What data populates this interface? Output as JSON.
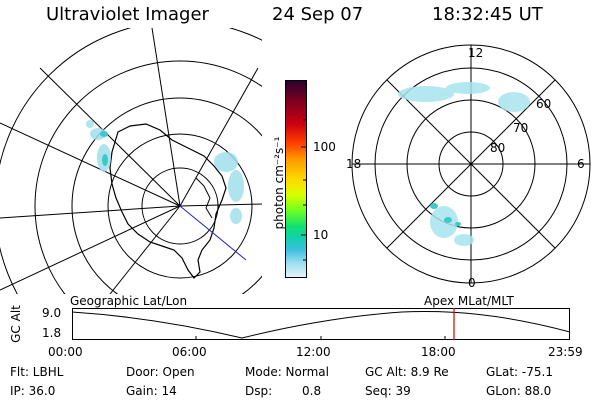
{
  "header": {
    "instrument": "Ultraviolet Imager",
    "date": "24 Sep 07",
    "time": "18:32:45 UT"
  },
  "geo_map": {
    "label": "Geographic Lat/Lon"
  },
  "polar_map": {
    "label": "Apex  MLat/MLT",
    "mlt_labels": [
      "12",
      "18",
      "6",
      "0"
    ],
    "lat_labels": [
      "60",
      "70",
      "80"
    ]
  },
  "colorbar": {
    "unit_label": "photon cm⁻²s⁻¹",
    "tick_labels": [
      "100",
      "10"
    ],
    "colors": [
      "#2a0030",
      "#7a0020",
      "#cc0010",
      "#ff4000",
      "#ff9a00",
      "#ffd800",
      "#d8ff00",
      "#70ff20",
      "#10e070",
      "#10d0b0",
      "#40c0e0",
      "#a0e0f0",
      "#e6f4f8"
    ]
  },
  "timeline": {
    "ylabel": "GC Alt",
    "y_top": "9.0",
    "y_bottom": "1.8",
    "x_ticks": [
      "00:00",
      "06:00",
      "12:00",
      "18:00",
      "23:59"
    ],
    "marker_color": "#e00000"
  },
  "info": {
    "flt": "Flt: LBHL",
    "ip": "IP: 36.0",
    "door": "Door: Open",
    "gain": "Gain: 14",
    "mode": "Mode: Normal",
    "dsp_label": "Dsp:",
    "dsp_value": "0.8",
    "gcalt": "GC Alt: 8.9 Re",
    "seq": "Seq: 39",
    "glat": "GLat: -75.1",
    "glon": "GLon: 88.0"
  }
}
